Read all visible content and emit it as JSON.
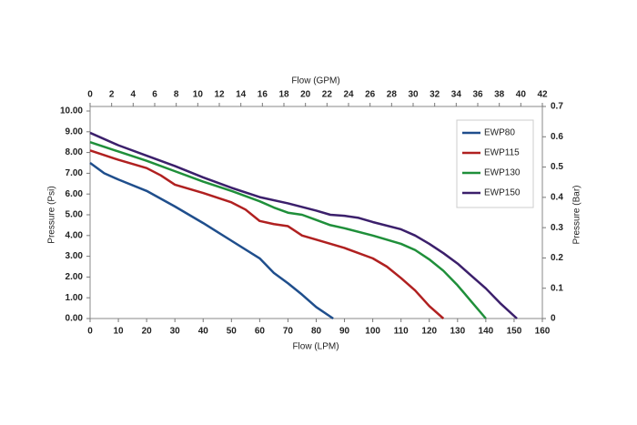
{
  "chart_data": {
    "type": "line",
    "xlabel": "Flow (LPM)",
    "x2label": "Flow (GPM)",
    "ylabel": "Pressure (Psi)",
    "y2label": "Pressure (Bar)",
    "xlim": [
      0,
      160
    ],
    "xticks": [
      0,
      10,
      20,
      30,
      40,
      50,
      60,
      70,
      80,
      90,
      100,
      110,
      120,
      130,
      140,
      150,
      160
    ],
    "x2lim": [
      0,
      42
    ],
    "x2ticks": [
      0,
      2,
      4,
      6,
      8,
      10,
      12,
      14,
      16,
      18,
      20,
      22,
      24,
      26,
      28,
      30,
      32,
      34,
      36,
      38,
      40,
      42
    ],
    "ylim": [
      0,
      10
    ],
    "yticks": [
      {
        "value": 0,
        "label": "0.00"
      },
      {
        "value": 1,
        "label": "1.00"
      },
      {
        "value": 2,
        "label": "2.00"
      },
      {
        "value": 3,
        "label": "3.00"
      },
      {
        "value": 4,
        "label": "4.00"
      },
      {
        "value": 5,
        "label": "5.00"
      },
      {
        "value": 6,
        "label": "6.00"
      },
      {
        "value": 7,
        "label": "7.00"
      },
      {
        "value": 8,
        "label": "8.00"
      },
      {
        "value": 9,
        "label": "9.00"
      },
      {
        "value": 10,
        "label": "10.00"
      }
    ],
    "y2lim": [
      0,
      0.7
    ],
    "y2ticks": [
      0,
      0.1,
      0.2,
      0.3,
      0.4,
      0.5,
      0.6,
      0.7
    ],
    "grid": false,
    "legend": "upper right",
    "series": [
      {
        "name": "EWP80",
        "color": "#1f4e8c",
        "x": [
          0,
          5,
          10,
          20,
          30,
          40,
          50,
          60,
          65,
          70,
          75,
          80,
          86
        ],
        "values": [
          7.5,
          7.0,
          6.7,
          6.15,
          5.4,
          4.6,
          3.75,
          2.9,
          2.2,
          1.7,
          1.15,
          0.55,
          0
        ]
      },
      {
        "name": "EWP115",
        "color": "#b02020",
        "x": [
          0,
          10,
          20,
          25,
          30,
          40,
          50,
          55,
          60,
          65,
          70,
          75,
          80,
          90,
          100,
          105,
          110,
          115,
          120,
          125
        ],
        "values": [
          8.1,
          7.65,
          7.25,
          6.9,
          6.45,
          6.05,
          5.6,
          5.25,
          4.7,
          4.55,
          4.45,
          4.0,
          3.8,
          3.4,
          2.9,
          2.5,
          1.95,
          1.35,
          0.6,
          0
        ]
      },
      {
        "name": "EWP130",
        "color": "#1f8f3a",
        "x": [
          0,
          10,
          20,
          30,
          40,
          50,
          60,
          65,
          70,
          75,
          80,
          85,
          90,
          100,
          110,
          115,
          120,
          125,
          130,
          135,
          140
        ],
        "values": [
          8.5,
          8.05,
          7.6,
          7.1,
          6.6,
          6.15,
          5.65,
          5.35,
          5.1,
          5.0,
          4.75,
          4.5,
          4.35,
          4.0,
          3.6,
          3.3,
          2.85,
          2.3,
          1.6,
          0.8,
          0
        ]
      },
      {
        "name": "EWP150",
        "color": "#3b1f6b",
        "x": [
          0,
          10,
          20,
          30,
          40,
          50,
          60,
          70,
          80,
          85,
          90,
          95,
          100,
          110,
          115,
          120,
          125,
          130,
          135,
          140,
          145,
          151
        ],
        "values": [
          8.95,
          8.35,
          7.85,
          7.35,
          6.8,
          6.3,
          5.85,
          5.55,
          5.2,
          5.0,
          4.95,
          4.85,
          4.65,
          4.3,
          4.0,
          3.6,
          3.15,
          2.65,
          2.05,
          1.45,
          0.75,
          0
        ]
      }
    ]
  }
}
